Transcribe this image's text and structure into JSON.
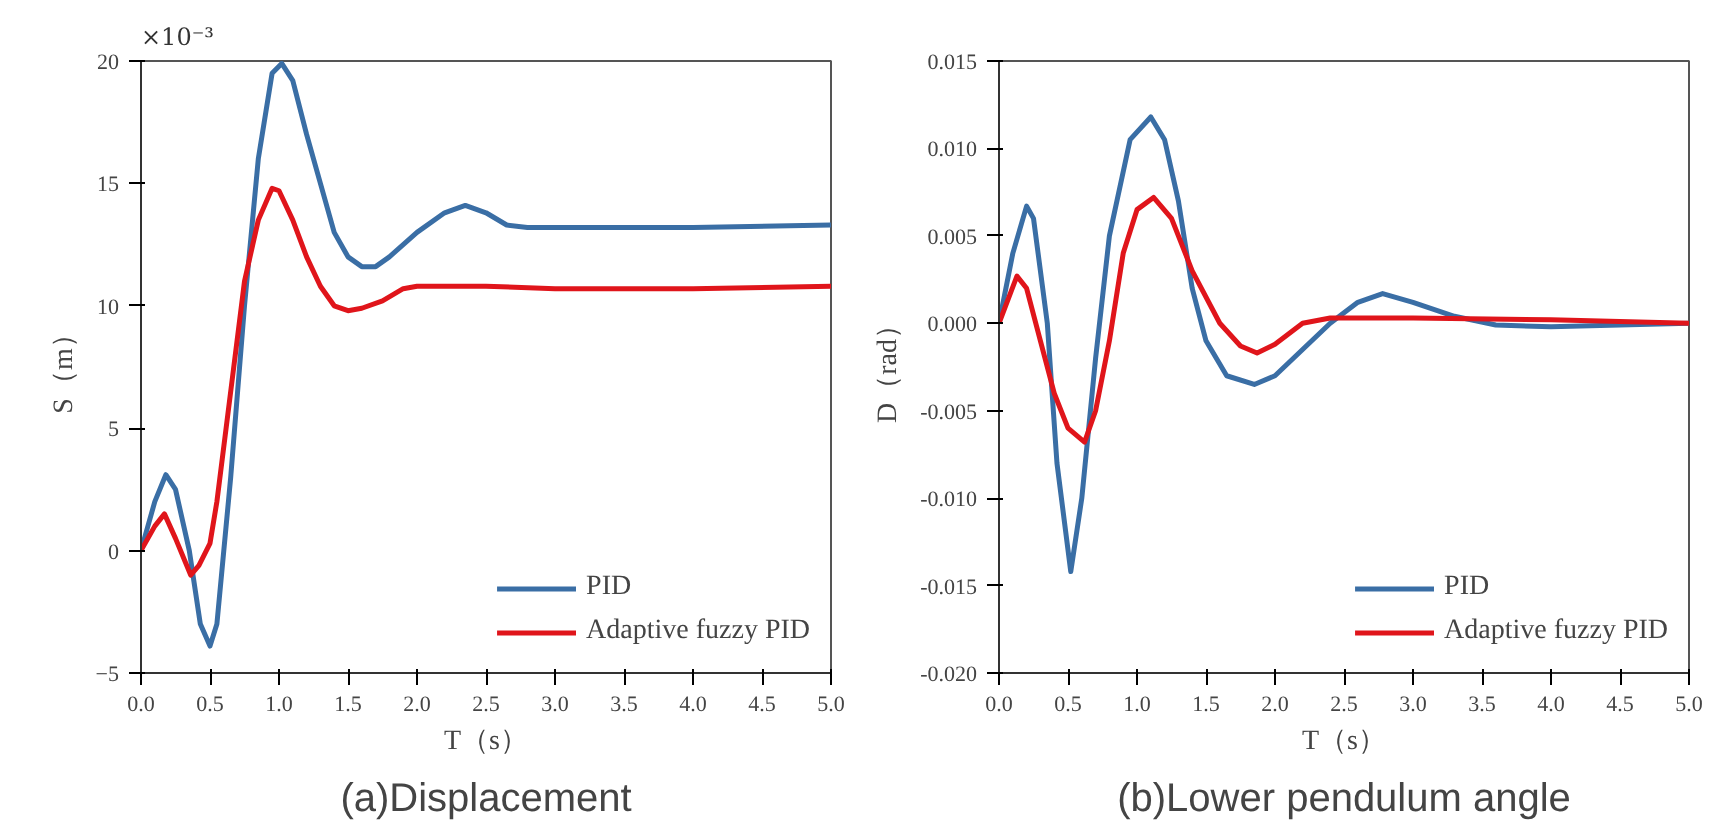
{
  "chart_data": [
    {
      "type": "line",
      "title": "(a)Displacement",
      "xlabel": "T（s）",
      "ylabel": "S（m）",
      "annotations": [
        "×10⁻³"
      ],
      "xlim": [
        0,
        5
      ],
      "ylim": [
        -5,
        20
      ],
      "xticks": [
        {
          "value": 0,
          "label": "0.0"
        },
        {
          "value": 0.5,
          "label": "0.5"
        },
        {
          "value": 1,
          "label": "1.0"
        },
        {
          "value": 1.5,
          "label": "1.5"
        },
        {
          "value": 2,
          "label": "2.0"
        },
        {
          "value": 2.5,
          "label": "2.5"
        },
        {
          "value": 3,
          "label": "3.0"
        },
        {
          "value": 3.5,
          "label": "3.5"
        },
        {
          "value": 4,
          "label": "4.0"
        },
        {
          "value": 4.5,
          "label": "4.5"
        },
        {
          "value": 5,
          "label": "5.0"
        }
      ],
      "yticks": [
        -5,
        0,
        5,
        10,
        15,
        20
      ],
      "grid": false,
      "legend": "bottom right",
      "series": [
        {
          "name": "PID",
          "color": "#3a6ea5",
          "x": [
            0,
            0.1,
            0.18,
            0.25,
            0.35,
            0.43,
            0.5,
            0.55,
            0.65,
            0.75,
            0.85,
            0.95,
            1.02,
            1.1,
            1.2,
            1.3,
            1.4,
            1.5,
            1.6,
            1.7,
            1.8,
            2.0,
            2.2,
            2.35,
            2.5,
            2.65,
            2.8,
            3.0,
            4.0,
            5.0
          ],
          "values": [
            0,
            2,
            3.1,
            2.5,
            0,
            -3,
            -3.9,
            -3,
            3,
            10,
            16,
            19.5,
            19.9,
            19.2,
            17,
            15,
            13,
            12,
            11.6,
            11.6,
            12,
            13,
            13.8,
            14.1,
            13.8,
            13.3,
            13.2,
            13.2,
            13.2,
            13.3
          ]
        },
        {
          "name": "Adaptive fuzzy PID",
          "color": "#e0151b",
          "x": [
            0,
            0.1,
            0.17,
            0.25,
            0.36,
            0.42,
            0.5,
            0.55,
            0.65,
            0.75,
            0.85,
            0.95,
            1.0,
            1.1,
            1.2,
            1.3,
            1.4,
            1.5,
            1.6,
            1.75,
            1.9,
            2.0,
            2.5,
            3.0,
            4.0,
            5.0
          ],
          "values": [
            0,
            1,
            1.5,
            0.5,
            -1,
            -0.6,
            0.3,
            2,
            6.5,
            11,
            13.5,
            14.8,
            14.7,
            13.5,
            12,
            10.8,
            10,
            9.8,
            9.9,
            10.2,
            10.7,
            10.8,
            10.8,
            10.7,
            10.7,
            10.8
          ]
        }
      ]
    },
    {
      "type": "line",
      "title": "(b)Lower pendulum angle",
      "xlabel": "T（s）",
      "ylabel": "D（rad）",
      "xlim": [
        0,
        5
      ],
      "ylim": [
        -0.02,
        0.015
      ],
      "xticks": [
        {
          "value": 0,
          "label": "0.0"
        },
        {
          "value": 0.5,
          "label": "0.5"
        },
        {
          "value": 1,
          "label": "1.0"
        },
        {
          "value": 1.5,
          "label": "1.5"
        },
        {
          "value": 2,
          "label": "2.0"
        },
        {
          "value": 2.5,
          "label": "2.5"
        },
        {
          "value": 3,
          "label": "3.0"
        },
        {
          "value": 3.5,
          "label": "3.5"
        },
        {
          "value": 4,
          "label": "4.0"
        },
        {
          "value": 4.5,
          "label": "4.5"
        },
        {
          "value": 5,
          "label": "5.0"
        }
      ],
      "yticks": [
        {
          "value": -0.02,
          "label": "-0.020"
        },
        {
          "value": -0.015,
          "label": "-0.015"
        },
        {
          "value": -0.01,
          "label": "-0.010"
        },
        {
          "value": -0.005,
          "label": "-0.005"
        },
        {
          "value": 0,
          "label": "0.000"
        },
        {
          "value": 0.005,
          "label": "0.005"
        },
        {
          "value": 0.01,
          "label": "0.010"
        },
        {
          "value": 0.015,
          "label": "0.015"
        }
      ],
      "grid": false,
      "legend": "bottom right",
      "series": [
        {
          "name": "PID",
          "color": "#3a6ea5",
          "x": [
            0,
            0.1,
            0.2,
            0.25,
            0.35,
            0.42,
            0.52,
            0.6,
            0.7,
            0.8,
            0.95,
            1.1,
            1.2,
            1.3,
            1.4,
            1.5,
            1.65,
            1.85,
            2.0,
            2.2,
            2.4,
            2.6,
            2.78,
            3.0,
            3.3,
            3.6,
            4.0,
            4.5,
            5.0
          ],
          "values": [
            0,
            0.004,
            0.0067,
            0.006,
            0.0,
            -0.008,
            -0.0142,
            -0.01,
            -0.002,
            0.005,
            0.0105,
            0.0118,
            0.0105,
            0.007,
            0.002,
            -0.001,
            -0.003,
            -0.0035,
            -0.003,
            -0.0015,
            0.0,
            0.0012,
            0.0017,
            0.0012,
            0.0004,
            -0.0001,
            -0.0002,
            -0.0001,
            0.0
          ]
        },
        {
          "name": "Adaptive fuzzy PID",
          "color": "#e0151b",
          "x": [
            0,
            0.13,
            0.2,
            0.3,
            0.4,
            0.5,
            0.62,
            0.7,
            0.8,
            0.9,
            1.0,
            1.12,
            1.25,
            1.4,
            1.6,
            1.75,
            1.87,
            2.0,
            2.2,
            2.4,
            3.0,
            4.0,
            5.0
          ],
          "values": [
            0,
            0.0027,
            0.002,
            -0.001,
            -0.004,
            -0.006,
            -0.0068,
            -0.005,
            -0.001,
            0.004,
            0.0065,
            0.0072,
            0.006,
            0.003,
            0.0,
            -0.0013,
            -0.0017,
            -0.0012,
            0.0,
            0.0003,
            0.0003,
            0.0002,
            0.0
          ]
        }
      ]
    }
  ]
}
